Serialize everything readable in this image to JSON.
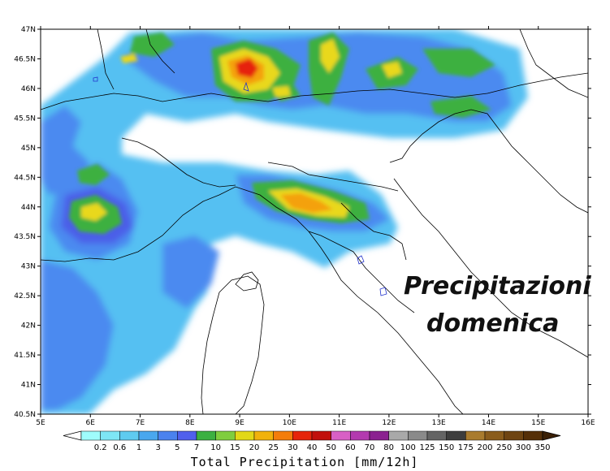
{
  "map": {
    "lat_labels": [
      "47N",
      "46.5N",
      "46N",
      "45.5N",
      "45N",
      "44.5N",
      "44N",
      "43.5N",
      "43N",
      "42.5N",
      "42N",
      "41.5N",
      "41N",
      "40.5N"
    ],
    "lon_labels": [
      "5E",
      "6E",
      "7E",
      "8E",
      "9E",
      "10E",
      "11E",
      "12E",
      "13E",
      "14E",
      "15E",
      "16E"
    ],
    "overlay_line1": "Precipitazioni",
    "overlay_line2": "domenica"
  },
  "colorbar": {
    "title": "Total Precipitation [mm/12h]",
    "labels": [
      "0.2",
      "0.6",
      "1",
      "3",
      "5",
      "7",
      "10",
      "15",
      "20",
      "25",
      "30",
      "40",
      "50",
      "60",
      "70",
      "80",
      "100",
      "125",
      "150",
      "175",
      "200",
      "250",
      "300",
      "350"
    ],
    "colors": [
      "#9ffcfc",
      "#7ee6f5",
      "#5fcbf0",
      "#4aa7ee",
      "#4b82ee",
      "#5060ec",
      "#3cb041",
      "#7fcd3e",
      "#e2d817",
      "#f1b20c",
      "#f47d0b",
      "#e6240a",
      "#c1100c",
      "#d860c5",
      "#b33aaf",
      "#8b2190",
      "#a9a9a9",
      "#8a8a8a",
      "#646464",
      "#3d3d3d",
      "#a97b2e",
      "#8a5c1c",
      "#6e4412",
      "#552f08"
    ],
    "low_color": "#ffffff",
    "high_color": "#3a1f05"
  },
  "colors": {
    "light_blue": "#54c0f2",
    "mid_blue": "#4b8af0",
    "dark_blue": "#4b5fe8",
    "green": "#3cb041",
    "light_green": "#89d13c",
    "yellow": "#e9d81a",
    "orange": "#f4a10c",
    "red": "#e6240a"
  }
}
